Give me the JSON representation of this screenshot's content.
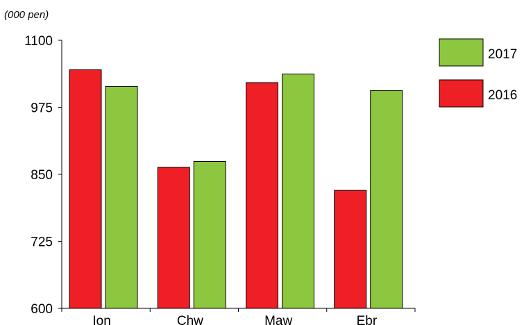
{
  "chart_data": {
    "type": "bar",
    "unit_label": "(000 pen)",
    "categories": [
      "Ion",
      "Chw",
      "Maw",
      "Ebr"
    ],
    "series": [
      {
        "name": "2016",
        "color": "#ee1f25",
        "values": [
          1045,
          863,
          1021,
          820
        ]
      },
      {
        "name": "2017",
        "color": "#8dc63f",
        "values": [
          1014,
          874,
          1037,
          1006
        ]
      }
    ],
    "ylim": [
      600,
      1100
    ],
    "yticks": [
      "600",
      "725",
      "850",
      "975",
      "1100"
    ],
    "legend": {
      "position": "right",
      "order": [
        "2017",
        "2016"
      ]
    },
    "grid": false
  }
}
